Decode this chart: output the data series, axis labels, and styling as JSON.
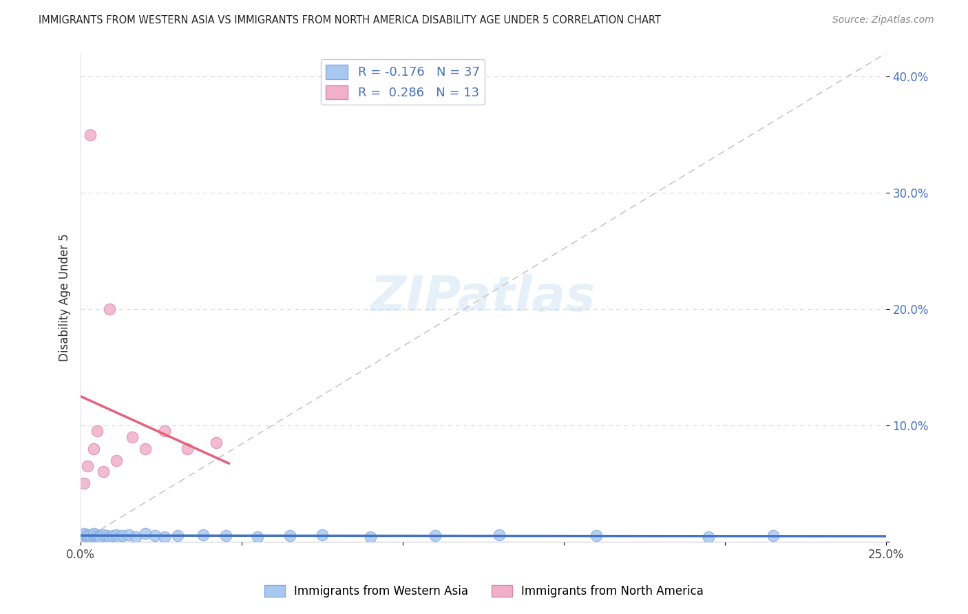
{
  "title": "IMMIGRANTS FROM WESTERN ASIA VS IMMIGRANTS FROM NORTH AMERICA DISABILITY AGE UNDER 5 CORRELATION CHART",
  "source": "Source: ZipAtlas.com",
  "ylabel": "Disability Age Under 5",
  "xlim": [
    0.0,
    0.25
  ],
  "ylim": [
    0.0,
    0.42
  ],
  "xticks": [
    0.0,
    0.05,
    0.1,
    0.15,
    0.2,
    0.25
  ],
  "yticks": [
    0.0,
    0.1,
    0.2,
    0.3,
    0.4
  ],
  "ytick_right_labels": [
    "",
    "10.0%",
    "20.0%",
    "30.0%",
    "40.0%"
  ],
  "xtick_labels": [
    "0.0%",
    "",
    "",
    "",
    "",
    "25.0%"
  ],
  "watermark_text": "ZIPatlas",
  "series1_color": "#a8c8f0",
  "series1_edge": "#88aad8",
  "series2_color": "#f0b0c8",
  "series2_edge": "#d888aa",
  "trend1_color": "#4472c4",
  "trend2_color": "#e8607a",
  "diag_color": "#c8c8c8",
  "grid_color": "#d8d8d8",
  "legend1_label": "R = -0.176   N = 37",
  "legend2_label": "R =  0.286   N = 13",
  "bottom_legend1": "Immigrants from Western Asia",
  "bottom_legend2": "Immigrants from North America",
  "western_asia_x": [
    0.001,
    0.001,
    0.002,
    0.002,
    0.003,
    0.003,
    0.003,
    0.004,
    0.004,
    0.005,
    0.005,
    0.006,
    0.006,
    0.007,
    0.008,
    0.009,
    0.01,
    0.011,
    0.012,
    0.013,
    0.015,
    0.017,
    0.02,
    0.023,
    0.026,
    0.03,
    0.038,
    0.045,
    0.055,
    0.065,
    0.075,
    0.09,
    0.11,
    0.13,
    0.16,
    0.195,
    0.215
  ],
  "western_asia_y": [
    0.005,
    0.007,
    0.004,
    0.006,
    0.005,
    0.004,
    0.006,
    0.005,
    0.007,
    0.004,
    0.006,
    0.005,
    0.004,
    0.006,
    0.005,
    0.004,
    0.005,
    0.006,
    0.004,
    0.005,
    0.006,
    0.004,
    0.007,
    0.005,
    0.004,
    0.005,
    0.006,
    0.005,
    0.004,
    0.005,
    0.006,
    0.004,
    0.005,
    0.006,
    0.005,
    0.004,
    0.005
  ],
  "north_america_x": [
    0.001,
    0.002,
    0.003,
    0.004,
    0.005,
    0.007,
    0.009,
    0.011,
    0.016,
    0.02,
    0.026,
    0.033,
    0.042
  ],
  "north_america_y": [
    0.05,
    0.065,
    0.35,
    0.08,
    0.095,
    0.06,
    0.2,
    0.07,
    0.09,
    0.08,
    0.095,
    0.08,
    0.085
  ]
}
